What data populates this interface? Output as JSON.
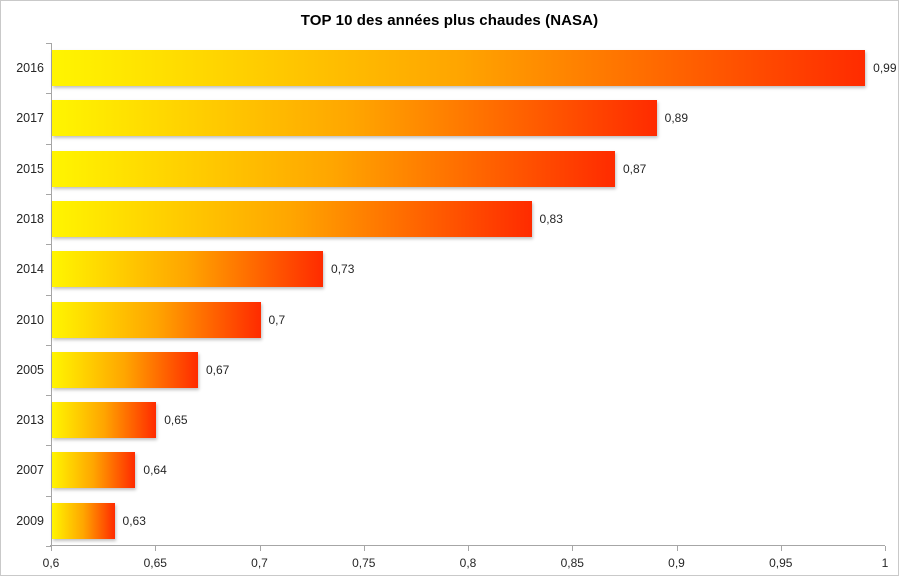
{
  "chart_data": {
    "type": "bar",
    "orientation": "horizontal",
    "title": "TOP 10 des années plus chaudes (NASA)",
    "categories": [
      "2016",
      "2017",
      "2015",
      "2018",
      "2014",
      "2010",
      "2005",
      "2013",
      "2007",
      "2009"
    ],
    "values": [
      0.99,
      0.89,
      0.87,
      0.83,
      0.73,
      0.7,
      0.67,
      0.65,
      0.64,
      0.63
    ],
    "value_labels": [
      "0,99",
      "0,89",
      "0,87",
      "0,83",
      "0,73",
      "0,7",
      "0,67",
      "0,65",
      "0,64",
      "0,63"
    ],
    "xlabel": "",
    "ylabel": "",
    "xlim": [
      0.6,
      1.0
    ],
    "x_tick_values": [
      0.6,
      0.65,
      0.7,
      0.75,
      0.8,
      0.85,
      0.9,
      0.95,
      1
    ],
    "x_tick_labels": [
      "0,6",
      "0,65",
      "0,7",
      "0,75",
      "0,8",
      "0,85",
      "0,9",
      "0,95",
      "1"
    ],
    "grid": false,
    "legend": "none",
    "bar_gradient": [
      "#fff500",
      "#ffa500",
      "#ff2b00"
    ],
    "axis_color": "#a6a6a6",
    "text_color": "#262626"
  }
}
